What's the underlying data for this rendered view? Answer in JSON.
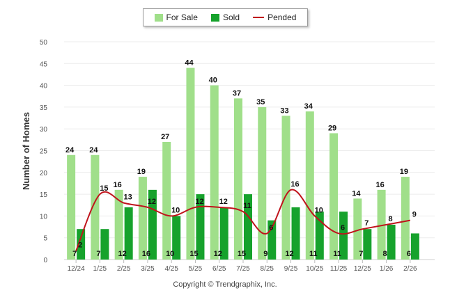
{
  "legend": {
    "for_sale": "For Sale",
    "sold": "Sold",
    "pended": "Pended"
  },
  "footer": "Copyright © Trendgraphix, Inc.",
  "colors": {
    "for_sale": "#a0df8a",
    "sold": "#16a22c",
    "pended": "#c0141c",
    "grid": "#ececec",
    "axis_text": "#555555"
  },
  "chart_data": {
    "type": "bar",
    "ylabel": "Number of Homes",
    "xlabel": "",
    "ylim": [
      0,
      50
    ],
    "yticks": [
      0,
      5,
      10,
      15,
      20,
      25,
      30,
      35,
      40,
      45,
      50
    ],
    "categories": [
      "12/24",
      "1/25",
      "2/25",
      "3/25",
      "4/25",
      "5/25",
      "6/25",
      "7/25",
      "8/25",
      "9/25",
      "10/25",
      "11/25",
      "12/25",
      "1/26",
      "2/26"
    ],
    "series": [
      {
        "name": "For Sale",
        "kind": "bar",
        "values": [
          24,
          24,
          16,
          19,
          27,
          44,
          40,
          37,
          35,
          33,
          34,
          29,
          14,
          16,
          19
        ]
      },
      {
        "name": "Sold",
        "kind": "bar",
        "values": [
          7,
          7,
          12,
          16,
          10,
          15,
          12,
          15,
          9,
          12,
          11,
          11,
          7,
          8,
          6
        ]
      },
      {
        "name": "Pended",
        "kind": "line",
        "values": [
          2,
          15,
          13,
          12,
          10,
          12,
          12,
          11,
          6,
          16,
          10,
          6,
          7,
          8,
          9
        ]
      }
    ]
  }
}
